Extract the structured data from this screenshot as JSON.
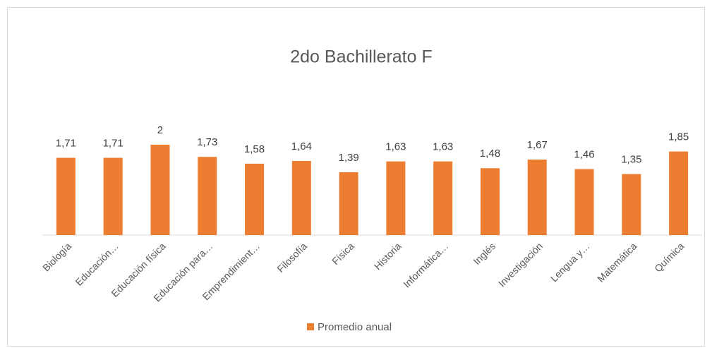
{
  "chart_data": {
    "type": "bar",
    "title": "2do Bachillerato F",
    "categories": [
      "Biología",
      "Educación…",
      "Educación física",
      "Educación para…",
      "Emprendimient…",
      "Filosofía",
      "Física",
      "Historia",
      "Informática…",
      "Inglés",
      "Investigación",
      "Lengua y…",
      "Matemática",
      "Química"
    ],
    "series": [
      {
        "name": "Promedio anual",
        "color": "#ed7d31",
        "values": [
          1.71,
          1.71,
          2,
          1.73,
          1.58,
          1.64,
          1.39,
          1.63,
          1.63,
          1.48,
          1.67,
          1.46,
          1.35,
          1.85
        ],
        "value_labels": [
          "1,71",
          "1,71",
          "2",
          "1,73",
          "1,58",
          "1,64",
          "1,39",
          "1,63",
          "1,63",
          "1,48",
          "1,67",
          "1,46",
          "1,35",
          "1,85"
        ]
      }
    ],
    "ylim": [
      0,
      2.5
    ],
    "legend": "bottom"
  }
}
